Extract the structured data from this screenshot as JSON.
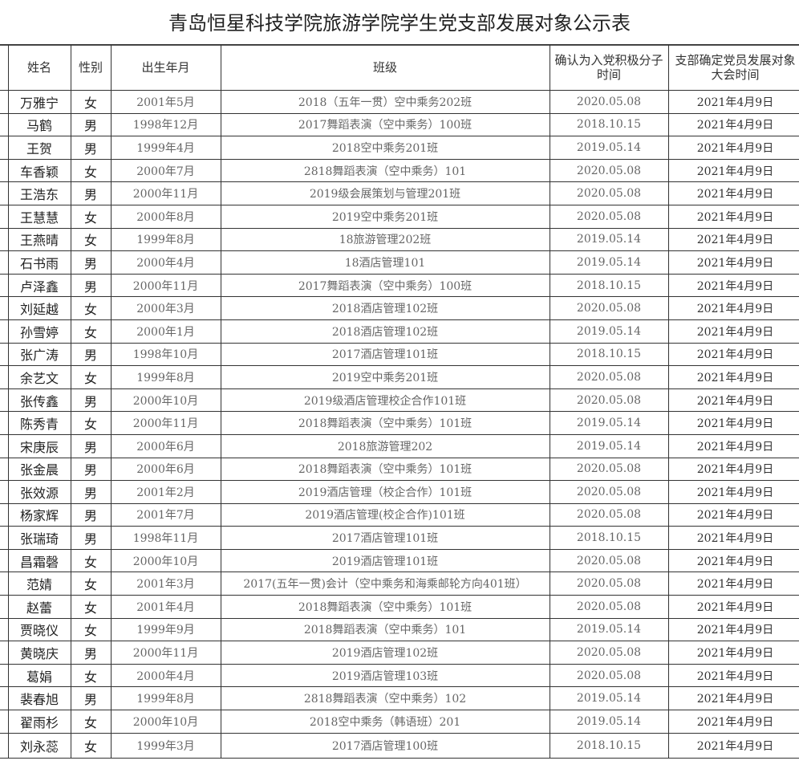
{
  "title": "青岛恒星科技学院旅游学院学生党支部发展对象公示表",
  "headers": {
    "name": "姓名",
    "gender": "性别",
    "birth": "出生年月",
    "class": "班级",
    "confirm_line1": "确认为入党积极分子",
    "confirm_line2": "时间",
    "meeting_line1": "支部确定党员发展对象",
    "meeting_line2": "大会时间"
  },
  "rows": [
    {
      "name": "万雅宁",
      "gender": "女",
      "birth": "2001年5月",
      "class": "2018（五年一贯）空中乘务202班",
      "confirm": "2020.05.08",
      "meeting": "2021年4月9日"
    },
    {
      "name": "马鹤",
      "gender": "男",
      "birth": "1998年12月",
      "class": "2017舞蹈表演（空中乘务）100班",
      "confirm": "2018.10.15",
      "meeting": "2021年4月9日"
    },
    {
      "name": "王贺",
      "gender": "男",
      "birth": "1999年4月",
      "class": "2018空中乘务201班",
      "confirm": "2019.05.14",
      "meeting": "2021年4月9日"
    },
    {
      "name": "车香颖",
      "gender": "女",
      "birth": "2000年7月",
      "class": "2818舞蹈表演（空中乘务）101",
      "confirm": "2020.05.08",
      "meeting": "2021年4月9日"
    },
    {
      "name": "王浩东",
      "gender": "男",
      "birth": "2000年11月",
      "class": "2019级会展策划与管理201班",
      "confirm": "2020.05.08",
      "meeting": "2021年4月9日"
    },
    {
      "name": "王慧慧",
      "gender": "女",
      "birth": "2000年8月",
      "class": "2019空中乘务201班",
      "confirm": "2020.05.08",
      "meeting": "2021年4月9日"
    },
    {
      "name": "王燕晴",
      "gender": "女",
      "birth": "1999年8月",
      "class": "18旅游管理202班",
      "confirm": "2019.05.14",
      "meeting": "2021年4月9日"
    },
    {
      "name": "石书雨",
      "gender": "男",
      "birth": "2000年4月",
      "class": "18酒店管理101",
      "confirm": "2019.05.14",
      "meeting": "2021年4月9日"
    },
    {
      "name": "卢泽鑫",
      "gender": "男",
      "birth": "2000年11月",
      "class": "2017舞蹈表演（空中乘务）100班",
      "confirm": "2018.10.15",
      "meeting": "2021年4月9日"
    },
    {
      "name": "刘延越",
      "gender": "女",
      "birth": "2000年3月",
      "class": "2018酒店管理102班",
      "confirm": "2020.05.08",
      "meeting": "2021年4月9日"
    },
    {
      "name": "孙雪婷",
      "gender": "女",
      "birth": "2000年1月",
      "class": "2018酒店管理102班",
      "confirm": "2019.05.14",
      "meeting": "2021年4月9日"
    },
    {
      "name": "张广涛",
      "gender": "男",
      "birth": "1998年10月",
      "class": "2017酒店管理101班",
      "confirm": "2018.10.15",
      "meeting": "2021年4月9日"
    },
    {
      "name": "余艺文",
      "gender": "女",
      "birth": "1999年8月",
      "class": "2019空中乘务201班",
      "confirm": "2020.05.08",
      "meeting": "2021年4月9日"
    },
    {
      "name": "张传鑫",
      "gender": "男",
      "birth": "2000年10月",
      "class": "2019级酒店管理校企合作101班",
      "confirm": "2020.05.08",
      "meeting": "2021年4月9日"
    },
    {
      "name": "陈秀青",
      "gender": "女",
      "birth": "2000年11月",
      "class": "2018舞蹈表演（空中乘务）101班",
      "confirm": "2019.05.14",
      "meeting": "2021年4月9日"
    },
    {
      "name": "宋庚辰",
      "gender": "男",
      "birth": "2000年6月",
      "class": "2018旅游管理202",
      "confirm": "2019.05.14",
      "meeting": "2021年4月9日"
    },
    {
      "name": "张金晨",
      "gender": "男",
      "birth": "2000年6月",
      "class": "2018舞蹈表演（空中乘务）101班",
      "confirm": "2020.05.08",
      "meeting": "2021年4月9日"
    },
    {
      "name": "张效源",
      "gender": "男",
      "birth": "2001年2月",
      "class": "2019酒店管理（校企合作）101班",
      "confirm": "2020.05.08",
      "meeting": "2021年4月9日"
    },
    {
      "name": "杨家辉",
      "gender": "男",
      "birth": "2001年7月",
      "class": "2019酒店管理(校企合作)101班",
      "confirm": "2020.05.08",
      "meeting": "2021年4月9日"
    },
    {
      "name": "张瑞琦",
      "gender": "男",
      "birth": "1998年11月",
      "class": "2017酒店管理101班",
      "confirm": "2018.10.15",
      "meeting": "2021年4月9日"
    },
    {
      "name": "昌霜磬",
      "gender": "女",
      "birth": "2000年10月",
      "class": "2019酒店管理101班",
      "confirm": "2020.05.08",
      "meeting": "2021年4月9日"
    },
    {
      "name": "范婧",
      "gender": "女",
      "birth": "2001年3月",
      "class": "2017(五年一贯)会计（空中乘务和海乘邮轮方向401班）",
      "confirm": "2020.05.08",
      "meeting": "2021年4月9日"
    },
    {
      "name": "赵蕾",
      "gender": "女",
      "birth": "2001年4月",
      "class": "2018舞蹈表演（空中乘务）101班",
      "confirm": "2020.05.08",
      "meeting": "2021年4月9日"
    },
    {
      "name": "贾晓仪",
      "gender": "女",
      "birth": "1999年9月",
      "class": "2018舞蹈表演（空中乘务）101",
      "confirm": "2019.05.14",
      "meeting": "2021年4月9日"
    },
    {
      "name": "黄晓庆",
      "gender": "男",
      "birth": "2000年11月",
      "class": "2019酒店管理102班",
      "confirm": "2020.05.08",
      "meeting": "2021年4月9日"
    },
    {
      "name": "葛娟",
      "gender": "女",
      "birth": "2000年4月",
      "class": "2019酒店管理103班",
      "confirm": "2020.05.08",
      "meeting": "2021年4月9日"
    },
    {
      "name": "裴春旭",
      "gender": "男",
      "birth": "1999年8月",
      "class": "2818舞蹈表演（空中乘务）102",
      "confirm": "2019.05.14",
      "meeting": "2021年4月9日"
    },
    {
      "name": "翟雨杉",
      "gender": "女",
      "birth": "2000年10月",
      "class": "2018空中乘务（韩语班）201",
      "confirm": "2019.05.14",
      "meeting": "2021年4月9日"
    },
    {
      "name": "刘永蕊",
      "gender": "女",
      "birth": "1999年3月",
      "class": "2017酒店管理100班",
      "confirm": "2018.10.15",
      "meeting": "2021年4月9日"
    }
  ]
}
